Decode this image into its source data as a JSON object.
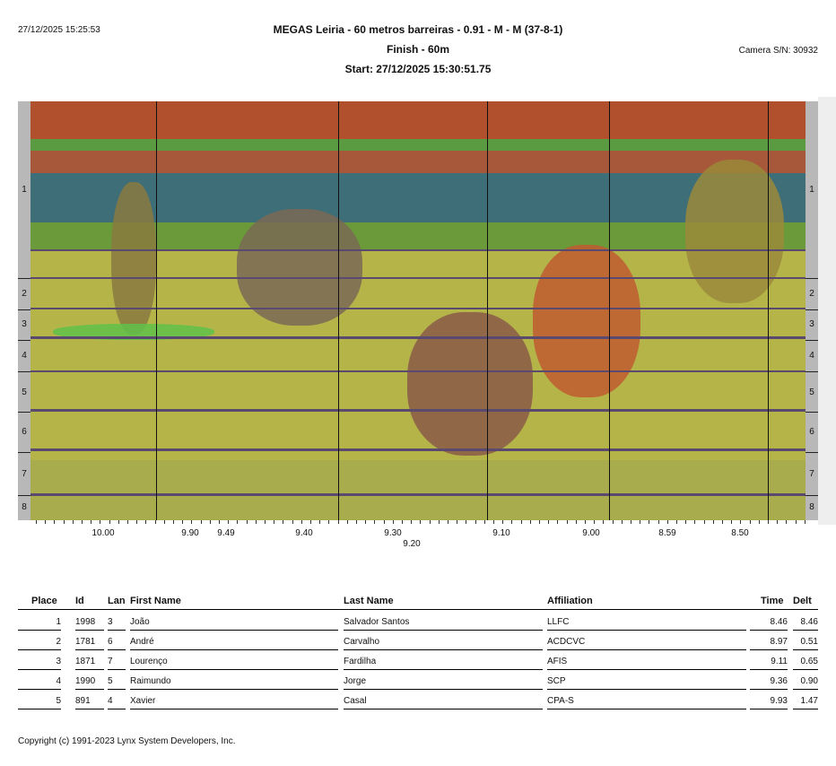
{
  "header": {
    "printed": "27/12/2025 15:25:53",
    "title": "MEGAS Leiria - 60 metros barreiras - 0.91 - M - M (37-8-1)",
    "subtitle": "Finish - 60m",
    "start": "Start: 27/12/2025 15:30:51.75",
    "camera": "Camera S/N: 30932"
  },
  "lanes": [
    "1",
    "2",
    "3",
    "4",
    "5",
    "6",
    "7",
    "8"
  ],
  "time_ticks": [
    "10.00",
    "9.90",
    "9.49",
    "9.40",
    "9.30",
    "9.20",
    "9.10",
    "9.00",
    "8.59",
    "8.50"
  ],
  "table": {
    "headers": [
      "Place",
      "Id",
      "Lan",
      "First Name",
      "Last Name",
      "Affiliation",
      "Time",
      "Delt"
    ],
    "rows": [
      [
        "1",
        "1998",
        "3",
        "João",
        "Salvador Santos",
        "LLFC",
        "8.46",
        "8.46"
      ],
      [
        "2",
        "1781",
        "6",
        "André",
        "Carvalho",
        "ACDCVC",
        "8.97",
        "0.51"
      ],
      [
        "3",
        "1871",
        "7",
        "Lourenço",
        "Fardilha",
        "AFIS",
        "9.11",
        "0.65"
      ],
      [
        "4",
        "1990",
        "5",
        "Raimundo",
        "Jorge",
        "SCP",
        "9.36",
        "0.90"
      ],
      [
        "5",
        "891",
        "4",
        "Xavier",
        "Casal",
        "CPA-S",
        "9.93",
        "1.47"
      ]
    ]
  },
  "footer": "Copyright (c) 1991-2023 Lynx System Developers, Inc."
}
